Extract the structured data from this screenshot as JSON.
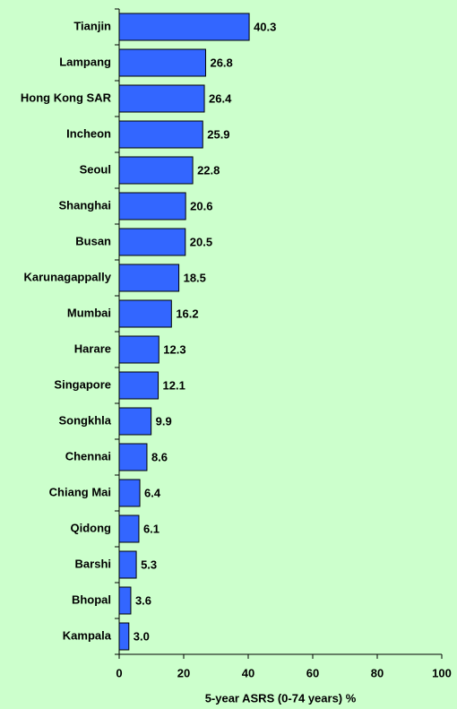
{
  "chart_data": {
    "type": "bar",
    "orientation": "horizontal",
    "x_label": "5-year ASRS (0-74 years) %",
    "categories": [
      "Tianjin",
      "Lampang",
      "Hong Kong SAR",
      "Incheon",
      "Seoul",
      "Shanghai",
      "Busan",
      "Karunagappally",
      "Mumbai",
      "Harare",
      "Singapore",
      "Songkhla",
      "Chennai",
      "Chiang Mai",
      "Qidong",
      "Barshi",
      "Bhopal",
      "Kampala"
    ],
    "values": [
      40.3,
      26.8,
      26.4,
      25.9,
      22.8,
      20.6,
      20.5,
      18.5,
      16.2,
      12.3,
      12.1,
      9.9,
      8.6,
      6.4,
      6.1,
      5.3,
      3.6,
      3.0
    ],
    "value_labels": [
      "40.3",
      "26.8",
      "26.4",
      "25.9",
      "22.8",
      "20.6",
      "20.5",
      "18.5",
      "16.2",
      "12.3",
      "12.1",
      "9.9",
      "8.6",
      "6.4",
      "6.1",
      "5.3",
      "3.6",
      "3.0"
    ],
    "color": "#3366ff",
    "xlim": [
      0,
      100
    ],
    "xticks": [
      0,
      20,
      40,
      60,
      80,
      100
    ],
    "grid": false
  }
}
